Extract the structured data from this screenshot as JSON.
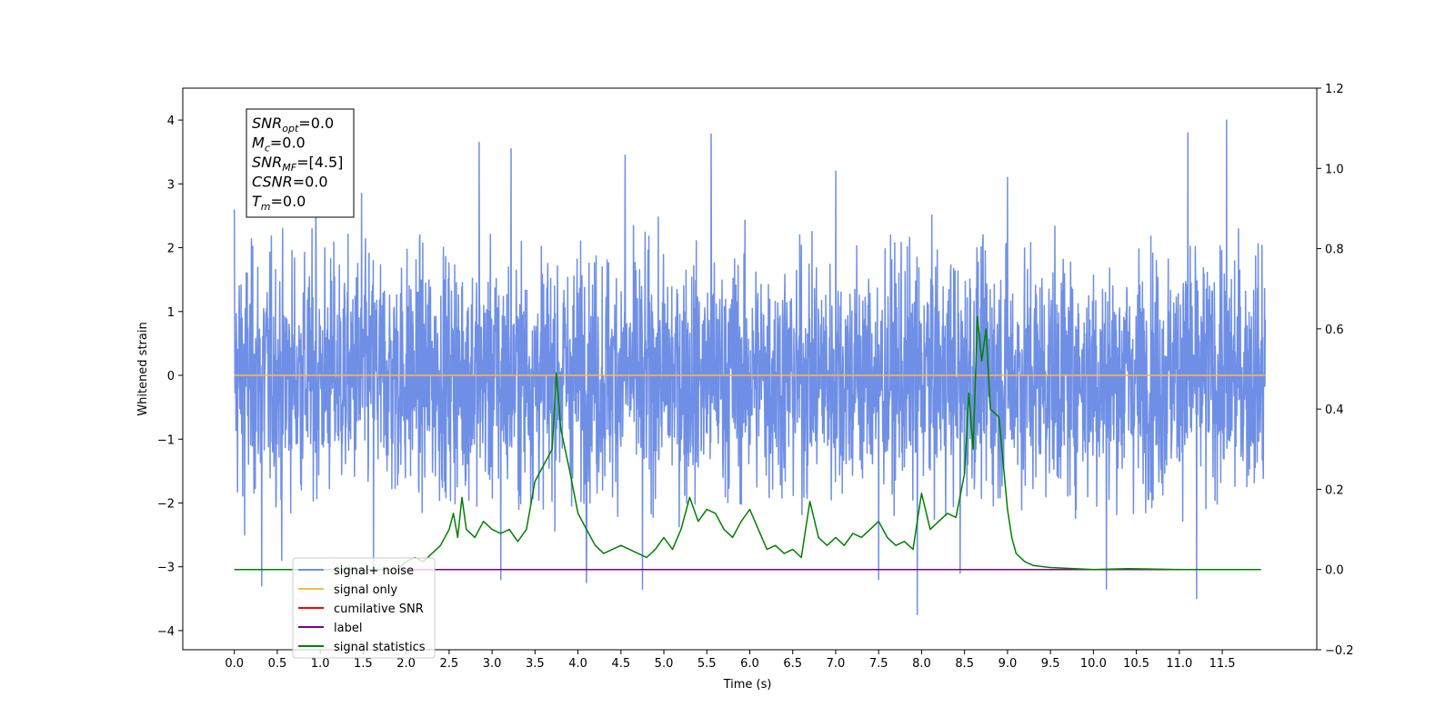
{
  "chart_data": {
    "type": "line",
    "title": "",
    "xlabel": "Time (s)",
    "ylabel_left": "Whitened strain",
    "ylabel_right": "",
    "xlim": [
      -0.6,
      12.6
    ],
    "ylim_left": [
      -4.3,
      4.5
    ],
    "ylim_right": [
      -0.2,
      1.2
    ],
    "x_ticks": [
      0.0,
      0.5,
      1.0,
      1.5,
      2.0,
      2.5,
      3.0,
      3.5,
      4.0,
      4.5,
      5.0,
      5.5,
      6.0,
      6.5,
      7.0,
      7.5,
      8.0,
      8.5,
      9.0,
      9.5,
      10.0,
      10.5,
      11.0,
      11.5
    ],
    "x_tick_labels": [
      "0.0",
      "0.5",
      "1.0",
      "1.5",
      "2.0",
      "2.5",
      "3.0",
      "3.5",
      "4.0",
      "4.5",
      "5.0",
      "5.5",
      "6.0",
      "6.5",
      "7.0",
      "7.5",
      "8.0",
      "8.5",
      "9.0",
      "9.5",
      "10.0",
      "10.5",
      "11.0",
      "11.5"
    ],
    "y_left_ticks": [
      -4,
      -3,
      -2,
      -1,
      0,
      1,
      2,
      3,
      4
    ],
    "y_left_tick_labels": [
      "−4",
      "−3",
      "−2",
      "−1",
      "0",
      "1",
      "2",
      "3",
      "4"
    ],
    "y_right_ticks": [
      -0.2,
      0.0,
      0.2,
      0.4,
      0.6,
      0.8,
      1.0,
      1.2
    ],
    "y_right_tick_labels": [
      "−0.2",
      "0.0",
      "0.2",
      "0.4",
      "0.6",
      "0.8",
      "1.0",
      "1.2"
    ],
    "grid": false,
    "legend_position": "lower-left",
    "colors": {
      "signal_noise": "#6f8fe6",
      "signal_only": "#ffb74d",
      "cumulative_snr": "#ff0000",
      "label": "#800080",
      "statistics": "#008000"
    },
    "series": [
      {
        "name": "signal+ noise",
        "axis": "left",
        "style": "dense noise band",
        "t_range": [
          0.0,
          12.0
        ],
        "band_typical": [
          -1.9,
          2.0
        ],
        "peak_spikes": [
          {
            "x": 0.0,
            "y": 2.6
          },
          {
            "x": 0.12,
            "y": -2.5
          },
          {
            "x": 0.32,
            "y": -3.3
          },
          {
            "x": 0.55,
            "y": -2.9
          },
          {
            "x": 0.95,
            "y": 2.9
          },
          {
            "x": 1.48,
            "y": 2.85
          },
          {
            "x": 1.62,
            "y": -3.1
          },
          {
            "x": 2.85,
            "y": 3.65
          },
          {
            "x": 3.1,
            "y": -3.2
          },
          {
            "x": 3.22,
            "y": 3.55
          },
          {
            "x": 4.1,
            "y": -3.25
          },
          {
            "x": 4.55,
            "y": 3.45
          },
          {
            "x": 4.75,
            "y": -3.35
          },
          {
            "x": 5.55,
            "y": 3.78
          },
          {
            "x": 7.0,
            "y": 3.2
          },
          {
            "x": 7.5,
            "y": -3.2
          },
          {
            "x": 7.95,
            "y": -3.75
          },
          {
            "x": 8.45,
            "y": -3.1
          },
          {
            "x": 9.0,
            "y": 3.1
          },
          {
            "x": 10.15,
            "y": -3.35
          },
          {
            "x": 11.1,
            "y": 3.8
          },
          {
            "x": 11.2,
            "y": -3.5
          },
          {
            "x": 11.55,
            "y": 4.0
          }
        ]
      },
      {
        "name": "signal only",
        "axis": "left",
        "x": [
          0.0,
          12.0
        ],
        "y": [
          0.0,
          0.0
        ]
      },
      {
        "name": "cumilative SNR",
        "axis": "right",
        "x": [],
        "y": []
      },
      {
        "name": "label",
        "axis": "right",
        "x": [
          0.0,
          11.95
        ],
        "y": [
          0.0,
          0.0
        ]
      },
      {
        "name": "signal statistics",
        "axis": "right",
        "x": [
          0.0,
          1.9,
          2.0,
          2.1,
          2.2,
          2.3,
          2.4,
          2.5,
          2.55,
          2.6,
          2.65,
          2.7,
          2.8,
          2.9,
          3.0,
          3.1,
          3.2,
          3.3,
          3.4,
          3.5,
          3.6,
          3.7,
          3.75,
          3.8,
          3.9,
          4.0,
          4.1,
          4.2,
          4.3,
          4.4,
          4.5,
          4.6,
          4.7,
          4.8,
          4.9,
          5.0,
          5.1,
          5.2,
          5.3,
          5.4,
          5.5,
          5.6,
          5.7,
          5.8,
          5.9,
          6.0,
          6.1,
          6.2,
          6.3,
          6.4,
          6.5,
          6.6,
          6.7,
          6.8,
          6.9,
          7.0,
          7.1,
          7.2,
          7.3,
          7.4,
          7.5,
          7.6,
          7.7,
          7.8,
          7.9,
          8.0,
          8.1,
          8.2,
          8.3,
          8.4,
          8.5,
          8.55,
          8.6,
          8.65,
          8.7,
          8.75,
          8.8,
          8.9,
          9.0,
          9.05,
          9.1,
          9.2,
          9.3,
          9.5,
          10.0,
          10.4,
          11.0,
          11.95
        ],
        "y": [
          0.0,
          0.0,
          0.02,
          0.03,
          0.02,
          0.04,
          0.06,
          0.1,
          0.14,
          0.08,
          0.18,
          0.1,
          0.08,
          0.12,
          0.1,
          0.09,
          0.1,
          0.07,
          0.1,
          0.22,
          0.26,
          0.3,
          0.49,
          0.35,
          0.25,
          0.14,
          0.1,
          0.06,
          0.04,
          0.05,
          0.06,
          0.05,
          0.04,
          0.03,
          0.05,
          0.08,
          0.05,
          0.1,
          0.18,
          0.12,
          0.15,
          0.14,
          0.1,
          0.08,
          0.12,
          0.15,
          0.1,
          0.05,
          0.06,
          0.04,
          0.05,
          0.03,
          0.17,
          0.08,
          0.06,
          0.08,
          0.06,
          0.09,
          0.08,
          0.1,
          0.12,
          0.08,
          0.06,
          0.07,
          0.05,
          0.19,
          0.1,
          0.12,
          0.14,
          0.13,
          0.24,
          0.44,
          0.3,
          0.63,
          0.52,
          0.6,
          0.4,
          0.38,
          0.15,
          0.08,
          0.04,
          0.02,
          0.01,
          0.005,
          0.0,
          0.002,
          0.0,
          0.0
        ]
      }
    ]
  },
  "legend": [
    {
      "label": "signal+ noise",
      "color": "#6f8fe6"
    },
    {
      "label": "signal only",
      "color": "#ffb74d"
    },
    {
      "label": "cumilative SNR",
      "color": "#ff0000"
    },
    {
      "label": "label",
      "color": "#800080"
    },
    {
      "label": "signal statistics",
      "color": "#008000"
    }
  ],
  "info_box": {
    "lines": [
      {
        "main": "SNR",
        "sub": "opt",
        "value": "=0.0"
      },
      {
        "main": "M",
        "sub": "c",
        "value": "=0.0"
      },
      {
        "main": "SNR",
        "sub": "MF",
        "value": "=[4.5]"
      },
      {
        "main": "CSNR",
        "sub": "",
        "value": "=0.0"
      },
      {
        "main": "T",
        "sub": "m",
        "value": "=0.0"
      }
    ]
  }
}
